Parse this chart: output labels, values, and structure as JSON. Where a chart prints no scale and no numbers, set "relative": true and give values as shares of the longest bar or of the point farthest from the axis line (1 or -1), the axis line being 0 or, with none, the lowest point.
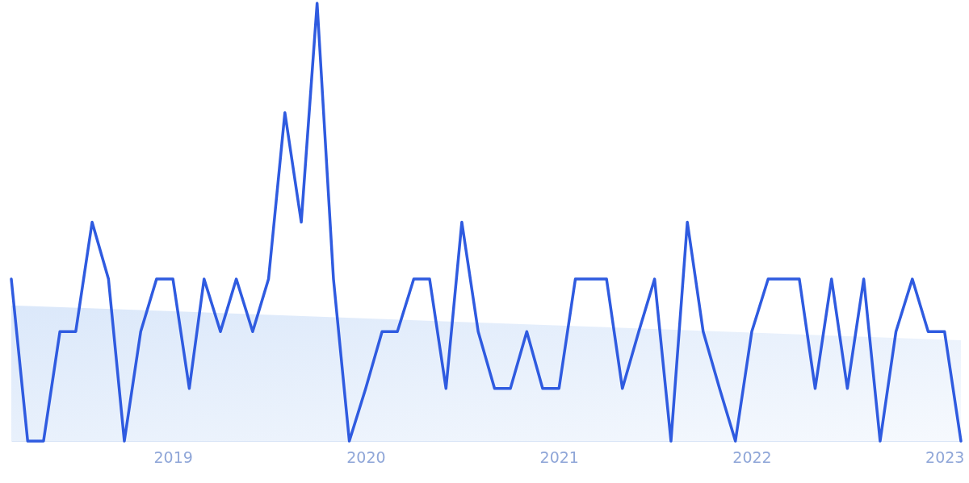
{
  "chart_data": {
    "type": "line",
    "relative": true,
    "x": [
      "2018-03",
      "2018-04",
      "2018-05",
      "2018-06",
      "2018-07",
      "2018-08",
      "2018-09",
      "2018-10",
      "2018-11",
      "2018-12",
      "2019-01",
      "2019-02",
      "2019-03",
      "2019-04",
      "2019-05",
      "2019-06",
      "2019-07",
      "2019-08",
      "2019-09",
      "2019-10",
      "2019-11",
      "2019-12",
      "2020-01",
      "2020-02",
      "2020-03",
      "2020-04",
      "2020-05",
      "2020-06",
      "2020-07",
      "2020-08",
      "2020-09",
      "2020-10",
      "2020-11",
      "2020-12",
      "2021-01",
      "2021-02",
      "2021-03",
      "2021-04",
      "2021-05",
      "2021-06",
      "2021-07",
      "2021-08",
      "2021-09",
      "2021-10",
      "2021-11",
      "2021-12",
      "2022-01",
      "2022-02",
      "2022-03",
      "2022-04",
      "2022-05",
      "2022-06",
      "2022-07",
      "2022-08",
      "2022-09",
      "2022-10",
      "2022-11",
      "2022-12",
      "2023-01",
      "2023-02"
    ],
    "xlim": [
      "2018-03",
      "2023-02"
    ],
    "xticks": [
      "2019",
      "2020",
      "2021",
      "2022",
      "2023"
    ],
    "series": [
      {
        "type": "area",
        "color": "#dbe8fa",
        "x": [
          "2018-03",
          "2023-02"
        ],
        "values": [
          0.31,
          0.23
        ]
      },
      {
        "color": "#2f5be0",
        "values": [
          0.37,
          0,
          0,
          0.25,
          0.25,
          0.5,
          0.37,
          0,
          0.25,
          0.37,
          0.37,
          0.12,
          0.37,
          0.25,
          0.37,
          0.25,
          0.37,
          0.75,
          0.5,
          1,
          0.37,
          0,
          0.12,
          0.25,
          0.25,
          0.37,
          0.37,
          0.12,
          0.5,
          0.25,
          0.12,
          0.12,
          0.25,
          0.12,
          0.12,
          0.37,
          0.37,
          0.37,
          0.12,
          0.25,
          0.37,
          0,
          0.5,
          0.25,
          0.12,
          0,
          0.25,
          0.37,
          0.37,
          0.37,
          0.12,
          0.37,
          0.12,
          0.37,
          0,
          0.25,
          0.37,
          0.25,
          0.25,
          0
        ]
      }
    ]
  }
}
